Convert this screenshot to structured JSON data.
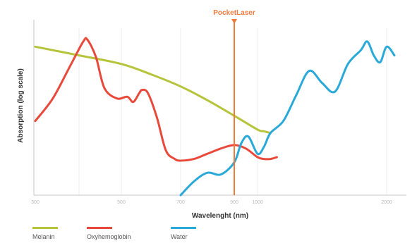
{
  "chart_data": {
    "type": "line",
    "xlabel": "Wavelenght (nm)",
    "ylabel": "Absorption (log scale)",
    "x_ticks": [
      "300",
      "500",
      "700",
      "900",
      "1000",
      "2000"
    ],
    "marker": {
      "label": "PocketLaser",
      "x": 900,
      "color": "#f07a3c"
    },
    "series": [
      {
        "name": "Melanin",
        "color": "#b5c43a",
        "x": [
          300,
          400,
          500,
          600,
          700,
          800,
          900,
          1000,
          1050,
          1100
        ],
        "y": [
          8.6,
          8.1,
          7.6,
          7.0,
          6.3,
          5.5,
          4.6,
          3.8,
          3.7,
          3.6
        ]
      },
      {
        "name": "Oxyhemoglobin",
        "color": "#e8493a",
        "x": [
          300,
          340,
          380,
          410,
          420,
          440,
          460,
          490,
          520,
          540,
          560,
          570,
          590,
          620,
          650,
          680,
          700,
          750,
          800,
          850,
          900,
          950,
          1000,
          1050,
          1100,
          1150
        ],
        "y": [
          4.3,
          5.6,
          7.5,
          8.9,
          9.0,
          8.0,
          6.2,
          5.6,
          5.7,
          5.4,
          5.9,
          6.1,
          5.9,
          4.5,
          2.6,
          2.1,
          2.0,
          2.1,
          2.4,
          2.7,
          2.9,
          2.7,
          2.2,
          2.1,
          2.1,
          2.2
        ]
      },
      {
        "name": "Water",
        "color": "#29a9d8",
        "x": [
          700,
          750,
          800,
          850,
          900,
          930,
          960,
          1000,
          1050,
          1100,
          1200,
          1300,
          1400,
          1500,
          1600,
          1700,
          1800,
          1850,
          1900,
          1950,
          2000,
          2050
        ],
        "y": [
          0,
          0.8,
          1.3,
          1.2,
          1.9,
          3.0,
          3.4,
          2.4,
          2.8,
          3.6,
          4.3,
          5.8,
          7.2,
          6.5,
          6.0,
          7.6,
          8.4,
          8.9,
          8.1,
          7.7,
          8.6,
          8.1
        ]
      }
    ],
    "grid": "vertical",
    "legend_position": "bottom"
  }
}
